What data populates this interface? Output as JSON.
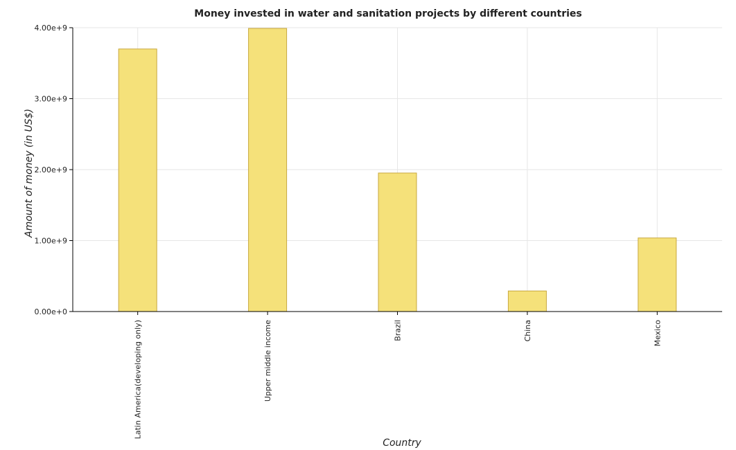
{
  "chart_data": {
    "type": "bar",
    "title": "Money invested in water and sanitation projects by different countries",
    "xlabel": "Country",
    "ylabel": "Amount of money (in US$)",
    "categories": [
      "Latin America(developing only)",
      "Upper middle income",
      "Brazil",
      "China",
      "Mexico"
    ],
    "values": [
      3700000000,
      3990000000,
      1952000000,
      290000000,
      1037000000
    ],
    "ylim": [
      0,
      4000000000
    ],
    "yticks": [
      0,
      1000000000,
      2000000000,
      3000000000,
      4000000000
    ],
    "ytick_labels": [
      "0.00e+0",
      "1.00e+9",
      "2.00e+9",
      "3.00e+9",
      "4.00e+9"
    ],
    "grid": true,
    "bar_color": "#f5e17a"
  }
}
